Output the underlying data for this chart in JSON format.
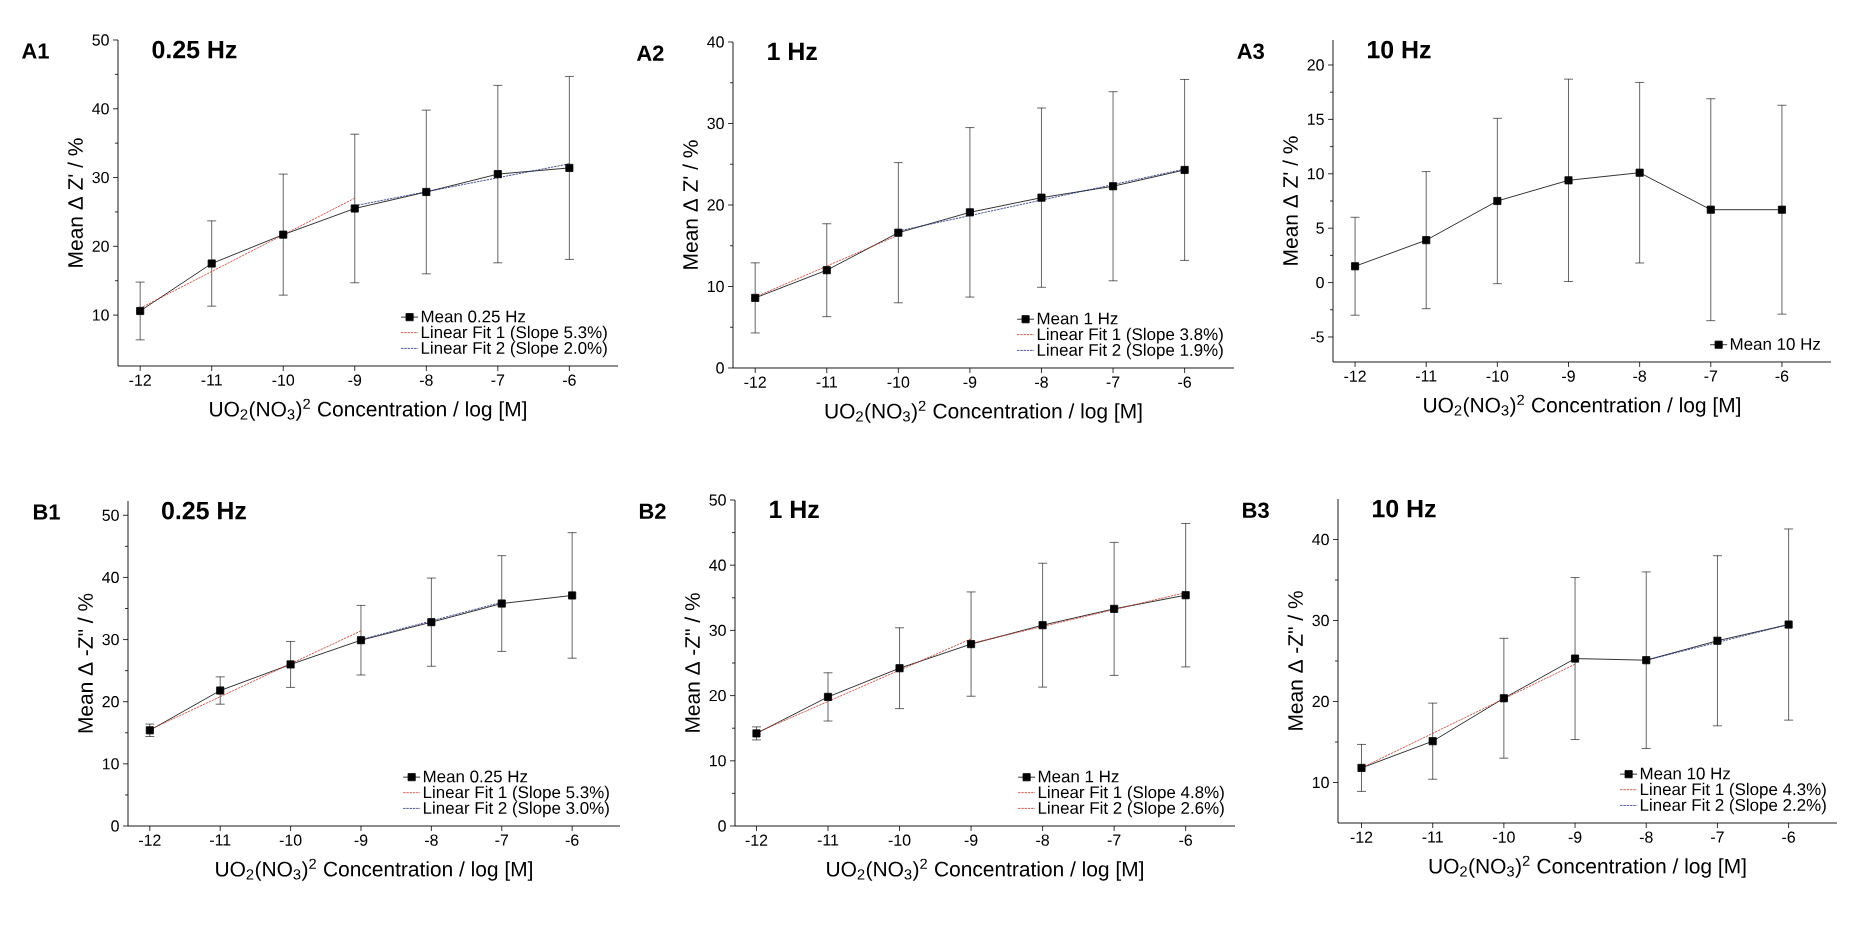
{
  "chart_data": [
    {
      "type": "line",
      "title": "0.25 Hz",
      "annotations": [
        "A1"
      ],
      "xlabel": "UO$_{2}$(NO$_{3}$)$^{2}$ Concentration / log [M]",
      "ylabel": "Mean Δ Z' / %",
      "xlim": [
        -12.31,
        -5.32
      ],
      "ylim": [
        2.6,
        50
      ],
      "xticks": [
        -12,
        -11,
        -10,
        -9,
        -8,
        -7,
        -6
      ],
      "yticks": [
        10,
        20,
        30,
        40,
        50
      ],
      "legend": "bottom right",
      "series": [
        {
          "name": "Mean 0.25 Hz",
          "color": "#000000",
          "marker": "square",
          "line_style": "solid",
          "x": [
            -12,
            -11,
            -10,
            -9,
            -8,
            -7,
            -6
          ],
          "values": [
            10.6,
            17.5,
            21.7,
            25.5,
            27.9,
            30.5,
            31.4
          ],
          "errors": [
            4.2,
            6.2,
            8.8,
            10.8,
            11.9,
            12.9,
            13.3
          ]
        },
        {
          "name": "Linear Fit 1 (Slope 5.3%)",
          "color": "#c0392b",
          "marker": "none",
          "line_style": "dashed",
          "x": [
            -12,
            -9
          ],
          "values": [
            11.0,
            27.0
          ]
        },
        {
          "name": "Linear Fit 2 (Slope 2.0%)",
          "color": "#1f2a7a",
          "marker": "none",
          "line_style": "dashed",
          "x": [
            -9,
            -6
          ],
          "values": [
            25.9,
            32.0
          ]
        }
      ]
    },
    {
      "type": "line",
      "title": "1 Hz",
      "annotations": [
        "A2"
      ],
      "xlabel": "UO$_{2}$(NO$_{3}$)$^{2}$ Concentration / log [M]",
      "ylabel": "Mean Δ Z' / %",
      "xlim": [
        -12.31,
        -5.31
      ],
      "ylim": [
        0,
        40
      ],
      "xticks": [
        -12,
        -11,
        -10,
        -9,
        -8,
        -7,
        -6
      ],
      "yticks": [
        0,
        10,
        20,
        30,
        40
      ],
      "legend": "bottom right",
      "series": [
        {
          "name": "Mean 1 Hz",
          "color": "#000000",
          "marker": "square",
          "line_style": "solid",
          "x": [
            -12,
            -11,
            -10,
            -9,
            -8,
            -7,
            -6
          ],
          "values": [
            8.6,
            12.0,
            16.6,
            19.1,
            20.9,
            22.3,
            24.3
          ],
          "errors": [
            4.3,
            5.7,
            8.6,
            10.4,
            11.0,
            11.6,
            11.1
          ]
        },
        {
          "name": "Linear Fit 1 (Slope 3.8%)",
          "color": "#c0392b",
          "marker": "none",
          "line_style": "dashed",
          "x": [
            -12,
            -10
          ],
          "values": [
            8.7,
            16.3
          ]
        },
        {
          "name": "Linear Fit 2 (Slope 1.9%)",
          "color": "#1f2a7a",
          "marker": "none",
          "line_style": "dashed",
          "x": [
            -10,
            -6
          ],
          "values": [
            16.8,
            24.4
          ]
        }
      ]
    },
    {
      "type": "line",
      "title": "10 Hz",
      "annotations": [
        "A3"
      ],
      "xlabel": "UO$_{2}$(NO$_{3}$)$^{2}$ Concentration / log [M]",
      "ylabel": "Mean Δ Z' / %",
      "xlim": [
        -12.31,
        -5.31
      ],
      "ylim": [
        -7.3,
        22.3
      ],
      "xticks": [
        -12,
        -11,
        -10,
        -9,
        -8,
        -7,
        -6
      ],
      "yticks": [
        -5,
        0,
        5,
        10,
        15,
        20
      ],
      "legend": "bottom right",
      "series": [
        {
          "name": "Mean 10 Hz",
          "color": "#000000",
          "marker": "square",
          "line_style": "solid",
          "x": [
            -12,
            -11,
            -10,
            -9,
            -8,
            -7,
            -6
          ],
          "values": [
            1.5,
            3.9,
            7.5,
            9.4,
            10.1,
            6.7,
            6.7
          ],
          "errors": [
            4.5,
            6.3,
            7.6,
            9.3,
            8.3,
            10.2,
            9.6
          ]
        }
      ]
    },
    {
      "type": "line",
      "title": "0.25 Hz",
      "annotations": [
        "B1"
      ],
      "xlabel": "UO$_{2}$(NO$_{3}$)$^{2}$ Concentration / log [M]",
      "ylabel": "Mean Δ -Z\" / %",
      "xlim": [
        -12.31,
        -5.32
      ],
      "ylim": [
        0,
        52.3
      ],
      "xticks": [
        -12,
        -11,
        -10,
        -9,
        -8,
        -7,
        -6
      ],
      "yticks": [
        0,
        10,
        20,
        30,
        40,
        50
      ],
      "legend": "bottom right",
      "series": [
        {
          "name": "Mean 0.25 Hz",
          "color": "#000000",
          "marker": "square",
          "line_style": "solid",
          "x": [
            -12,
            -11,
            -10,
            -9,
            -8,
            -7,
            -6
          ],
          "values": [
            15.4,
            21.8,
            26.0,
            29.9,
            32.8,
            35.8,
            37.1
          ],
          "errors": [
            1.0,
            2.2,
            3.7,
            5.6,
            7.1,
            7.7,
            10.1
          ]
        },
        {
          "name": "Linear Fit 1 (Slope 5.3%)",
          "color": "#c0392b",
          "marker": "none",
          "line_style": "dashed",
          "x": [
            -12,
            -9
          ],
          "values": [
            15.5,
            31.4
          ]
        },
        {
          "name": "Linear Fit 2 (Slope 3.0%)",
          "color": "#1f2a7a",
          "marker": "none",
          "line_style": "dashed",
          "x": [
            -9,
            -7
          ],
          "values": [
            30.0,
            36.0
          ]
        }
      ]
    },
    {
      "type": "line",
      "title": "1 Hz",
      "annotations": [
        "B2"
      ],
      "xlabel": "UO$_{2}$(NO$_{3}$)$^{2}$ Concentration / log [M]",
      "ylabel": "Mean Δ -Z\" / %",
      "xlim": [
        -12.3,
        -5.31
      ],
      "ylim": [
        0,
        50
      ],
      "xticks": [
        -12,
        -11,
        -10,
        -9,
        -8,
        -7,
        -6
      ],
      "yticks": [
        0,
        10,
        20,
        30,
        40,
        50
      ],
      "legend": "bottom right",
      "series": [
        {
          "name": "Mean 1 Hz",
          "color": "#000000",
          "marker": "square",
          "line_style": "solid",
          "x": [
            -12,
            -11,
            -10,
            -9,
            -8,
            -7,
            -6
          ],
          "values": [
            14.2,
            19.8,
            24.2,
            27.9,
            30.8,
            33.3,
            35.4
          ],
          "errors": [
            1.0,
            3.7,
            6.2,
            8.0,
            9.5,
            10.2,
            11.0
          ]
        },
        {
          "name": "Linear Fit 1 (Slope 4.8%)",
          "color": "#c0392b",
          "marker": "none",
          "line_style": "dashed",
          "x": [
            -12,
            -9
          ],
          "values": [
            14.3,
            28.7
          ]
        },
        {
          "name": "Linear Fit 2 (Slope 2.6%)",
          "color": "#c0392b",
          "marker": "none",
          "line_style": "dashed",
          "x": [
            -9,
            -6
          ],
          "values": [
            28.0,
            35.8
          ]
        }
      ]
    },
    {
      "type": "line",
      "title": "10 Hz",
      "annotations": [
        "B3"
      ],
      "xlabel": "UO$_{2}$(NO$_{3}$)$^{2}$ Concentration / log [M]",
      "ylabel": "Mean Δ -Z\" / %",
      "xlim": [
        -12.33,
        -5.32
      ],
      "ylim": [
        5,
        45
      ],
      "xticks": [
        -12,
        -11,
        -10,
        -9,
        -8,
        -7,
        -6
      ],
      "yticks": [
        10,
        20,
        30,
        40
      ],
      "legend": "bottom right",
      "series": [
        {
          "name": "Mean 10 Hz",
          "color": "#000000",
          "marker": "square",
          "line_style": "solid",
          "x": [
            -12,
            -11,
            -10,
            -9,
            -8,
            -7,
            -6
          ],
          "values": [
            11.8,
            15.1,
            20.4,
            25.3,
            25.1,
            27.5,
            29.5
          ],
          "errors": [
            2.9,
            4.7,
            7.4,
            10.0,
            10.9,
            10.5,
            11.8
          ]
        },
        {
          "name": "Linear Fit 1 (Slope 4.3%)",
          "color": "#c0392b",
          "marker": "none",
          "line_style": "dashed",
          "x": [
            -12,
            -9
          ],
          "values": [
            11.8,
            24.6
          ]
        },
        {
          "name": "Linear Fit 2 (Slope 2.2%)",
          "color": "#1f2a7a",
          "marker": "none",
          "line_style": "dashed",
          "x": [
            -8,
            -6
          ],
          "values": [
            25.1,
            29.5
          ]
        }
      ]
    }
  ]
}
